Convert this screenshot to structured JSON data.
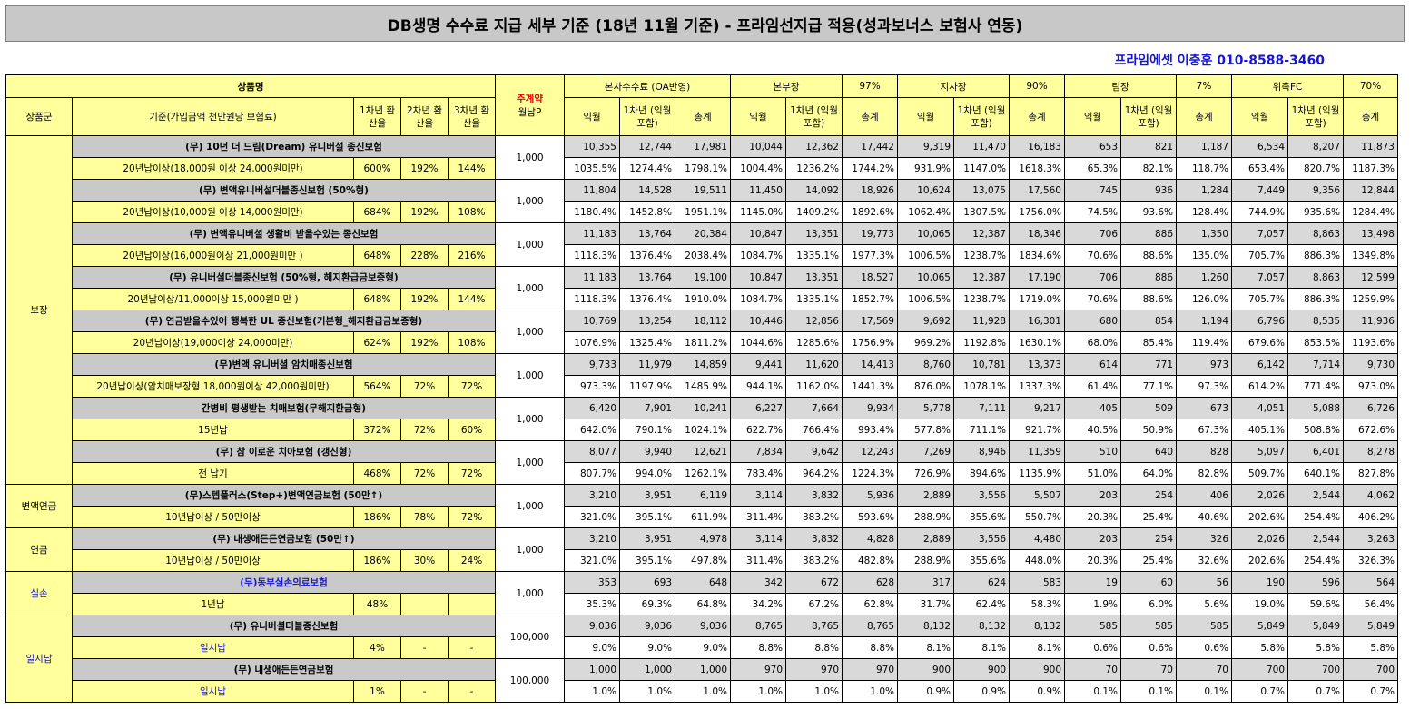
{
  "title": "DB생명 수수료 지급 세부 기준 (18년 11월 기준) - 프라임선지급 적용(성과보너스 보험사 연동)",
  "contact": "프라임에셋 이충훈 010-8588-3460",
  "headers": {
    "product_name": "상품명",
    "group": "상품군",
    "criteria": "기준(가입금액 천만원당 보험료)",
    "yr1": "1차년 환산율",
    "yr2": "2차년 환산율",
    "yr3": "3차년 환산율",
    "premium_top": "주계약",
    "premium_bottom": "월납P",
    "hq_fee": "본사수수료 (OA반영)",
    "dept_head": "본부장",
    "dept_pct": "97%",
    "branch_head": "지사장",
    "branch_pct": "90%",
    "team_lead": "팀장",
    "team_pct": "7%",
    "fc": "위촉FC",
    "fc_pct": "70%",
    "ikwol": "익월",
    "yr1_incl": "1차년 (익월포함)",
    "total": "총계"
  },
  "groups": [
    {
      "name": "보장"
    },
    {
      "name": "변액연금"
    },
    {
      "name": "연금"
    },
    {
      "name": "실손"
    },
    {
      "name": "일시납"
    }
  ],
  "products": [
    {
      "name": "(무) 10년 더 드림(Dream) 유니버설 종신보험",
      "criteria": "20년납이상(18,000원 이상 24,000원미만)",
      "r1": "600%",
      "r2": "192%",
      "r3": "144%",
      "premium": "1,000",
      "nums": [
        "10,355",
        "12,744",
        "17,981",
        "10,044",
        "12,362",
        "17,442",
        "9,319",
        "11,470",
        "16,183",
        "653",
        "821",
        "1,187",
        "6,534",
        "8,207",
        "11,873"
      ],
      "rates": [
        "1035.5%",
        "1274.4%",
        "1798.1%",
        "1004.4%",
        "1236.2%",
        "1744.2%",
        "931.9%",
        "1147.0%",
        "1618.3%",
        "65.3%",
        "82.1%",
        "118.7%",
        "653.4%",
        "820.7%",
        "1187.3%"
      ]
    },
    {
      "name": "(무) 변액유니버설더블종신보험 (50%형)",
      "criteria": "20년납이상(10,000원 이상 14,000원미만)",
      "r1": "684%",
      "r2": "192%",
      "r3": "108%",
      "premium": "1,000",
      "nums": [
        "11,804",
        "14,528",
        "19,511",
        "11,450",
        "14,092",
        "18,926",
        "10,624",
        "13,075",
        "17,560",
        "745",
        "936",
        "1,284",
        "7,449",
        "9,356",
        "12,844"
      ],
      "rates": [
        "1180.4%",
        "1452.8%",
        "1951.1%",
        "1145.0%",
        "1409.2%",
        "1892.6%",
        "1062.4%",
        "1307.5%",
        "1756.0%",
        "74.5%",
        "93.6%",
        "128.4%",
        "744.9%",
        "935.6%",
        "1284.4%"
      ]
    },
    {
      "name": "(무) 변액유니버셜 생활비 받을수있는 종신보험",
      "criteria": "20년납이상(16,000원이상 21,000원미만 )",
      "r1": "648%",
      "r2": "228%",
      "r3": "216%",
      "premium": "1,000",
      "nums": [
        "11,183",
        "13,764",
        "20,384",
        "10,847",
        "13,351",
        "19,773",
        "10,065",
        "12,387",
        "18,346",
        "706",
        "886",
        "1,350",
        "7,057",
        "8,863",
        "13,498"
      ],
      "rates": [
        "1118.3%",
        "1376.4%",
        "2038.4%",
        "1084.7%",
        "1335.1%",
        "1977.3%",
        "1006.5%",
        "1238.7%",
        "1834.6%",
        "70.6%",
        "88.6%",
        "135.0%",
        "705.7%",
        "886.3%",
        "1349.8%"
      ]
    },
    {
      "name": "(무) 유니버셜더블종신보험 (50%형, 해지환급금보증형)",
      "criteria": "20년납이상/11,000이상 15,000원미만 )",
      "r1": "648%",
      "r2": "192%",
      "r3": "144%",
      "premium": "1,000",
      "nums": [
        "11,183",
        "13,764",
        "19,100",
        "10,847",
        "13,351",
        "18,527",
        "10,065",
        "12,387",
        "17,190",
        "706",
        "886",
        "1,260",
        "7,057",
        "8,863",
        "12,599"
      ],
      "rates": [
        "1118.3%",
        "1376.4%",
        "1910.0%",
        "1084.7%",
        "1335.1%",
        "1852.7%",
        "1006.5%",
        "1238.7%",
        "1719.0%",
        "70.6%",
        "88.6%",
        "126.0%",
        "705.7%",
        "886.3%",
        "1259.9%"
      ]
    },
    {
      "name": "(무) 연금받을수있어 행복한 UL 종신보험(기본형_해지환급금보증형)",
      "criteria": "20년납이상(19,000이상 24,000미만)",
      "r1": "624%",
      "r2": "192%",
      "r3": "108%",
      "premium": "1,000",
      "nums": [
        "10,769",
        "13,254",
        "18,112",
        "10,446",
        "12,856",
        "17,569",
        "9,692",
        "11,928",
        "16,301",
        "680",
        "854",
        "1,194",
        "6,796",
        "8,535",
        "11,936"
      ],
      "rates": [
        "1076.9%",
        "1325.4%",
        "1811.2%",
        "1044.6%",
        "1285.6%",
        "1756.9%",
        "969.2%",
        "1192.8%",
        "1630.1%",
        "68.0%",
        "85.4%",
        "119.4%",
        "679.6%",
        "853.5%",
        "1193.6%"
      ]
    },
    {
      "name": "(무)변액 유니버셜 암치매종신보험",
      "criteria": "20년납이상(암치매보장형 18,000원이상 42,000원미만)",
      "r1": "564%",
      "r2": "72%",
      "r3": "72%",
      "premium": "1,000",
      "nums": [
        "9,733",
        "11,979",
        "14,859",
        "9,441",
        "11,620",
        "14,413",
        "8,760",
        "10,781",
        "13,373",
        "614",
        "771",
        "973",
        "6,142",
        "7,714",
        "9,730"
      ],
      "rates": [
        "973.3%",
        "1197.9%",
        "1485.9%",
        "944.1%",
        "1162.0%",
        "1441.3%",
        "876.0%",
        "1078.1%",
        "1337.3%",
        "61.4%",
        "77.1%",
        "97.3%",
        "614.2%",
        "771.4%",
        "973.0%"
      ]
    },
    {
      "name": "간병비 평생받는 치매보험(무해지환급형)",
      "criteria": "15년납",
      "r1": "372%",
      "r2": "72%",
      "r3": "60%",
      "premium": "1,000",
      "nums": [
        "6,420",
        "7,901",
        "10,241",
        "6,227",
        "7,664",
        "9,934",
        "5,778",
        "7,111",
        "9,217",
        "405",
        "509",
        "673",
        "4,051",
        "5,088",
        "6,726"
      ],
      "rates": [
        "642.0%",
        "790.1%",
        "1024.1%",
        "622.7%",
        "766.4%",
        "993.4%",
        "577.8%",
        "711.1%",
        "921.7%",
        "40.5%",
        "50.9%",
        "67.3%",
        "405.1%",
        "508.8%",
        "672.6%"
      ]
    },
    {
      "name": "(무) 참 이로운 치아보험 (갱신형)",
      "criteria": "전 납기",
      "r1": "468%",
      "r2": "72%",
      "r3": "72%",
      "premium": "1,000",
      "nums": [
        "8,077",
        "9,940",
        "12,621",
        "7,834",
        "9,642",
        "12,243",
        "7,269",
        "8,946",
        "11,359",
        "510",
        "640",
        "828",
        "5,097",
        "6,401",
        "8,278"
      ],
      "rates": [
        "807.7%",
        "994.0%",
        "1262.1%",
        "783.4%",
        "964.2%",
        "1224.3%",
        "726.9%",
        "894.6%",
        "1135.9%",
        "51.0%",
        "64.0%",
        "82.8%",
        "509.7%",
        "640.1%",
        "827.8%"
      ]
    },
    {
      "name": "(무)스텝플러스(Step+)변액연금보험 (50만↑)",
      "criteria": "10년납이상 / 50만이상",
      "r1": "186%",
      "r2": "78%",
      "r3": "72%",
      "premium": "1,000",
      "nums": [
        "3,210",
        "3,951",
        "6,119",
        "3,114",
        "3,832",
        "5,936",
        "2,889",
        "3,556",
        "5,507",
        "203",
        "254",
        "406",
        "2,026",
        "2,544",
        "4,062"
      ],
      "rates": [
        "321.0%",
        "395.1%",
        "611.9%",
        "311.4%",
        "383.2%",
        "593.6%",
        "288.9%",
        "355.6%",
        "550.7%",
        "20.3%",
        "25.4%",
        "40.6%",
        "202.6%",
        "254.4%",
        "406.2%"
      ]
    },
    {
      "name": "(무) 내생애든든연금보험 (50만↑)",
      "criteria": "10년납이상 / 50만이상",
      "r1": "186%",
      "r2": "30%",
      "r3": "24%",
      "premium": "1,000",
      "nums": [
        "3,210",
        "3,951",
        "4,978",
        "3,114",
        "3,832",
        "4,828",
        "2,889",
        "3,556",
        "4,480",
        "203",
        "254",
        "326",
        "2,026",
        "2,544",
        "3,263"
      ],
      "rates": [
        "321.0%",
        "395.1%",
        "497.8%",
        "311.4%",
        "383.2%",
        "482.8%",
        "288.9%",
        "355.6%",
        "448.0%",
        "20.3%",
        "25.4%",
        "32.6%",
        "202.6%",
        "254.4%",
        "326.3%"
      ]
    },
    {
      "name": "(무)동부실손의료보험",
      "criteria": "1년납",
      "r1": "48%",
      "r2": "",
      "r3": "",
      "premium": "1,000",
      "nums": [
        "353",
        "693",
        "648",
        "342",
        "672",
        "628",
        "317",
        "624",
        "583",
        "19",
        "60",
        "56",
        "190",
        "596",
        "564"
      ],
      "rates": [
        "35.3%",
        "69.3%",
        "64.8%",
        "34.2%",
        "67.2%",
        "62.8%",
        "31.7%",
        "62.4%",
        "58.3%",
        "1.9%",
        "6.0%",
        "5.6%",
        "19.0%",
        "59.6%",
        "56.4%"
      ]
    },
    {
      "name": "(무) 유니버셜더블종신보험",
      "criteria": "일시납",
      "r1": "4%",
      "r2": "-",
      "r3": "-",
      "premium": "100,000",
      "nums": [
        "9,036",
        "9,036",
        "9,036",
        "8,765",
        "8,765",
        "8,765",
        "8,132",
        "8,132",
        "8,132",
        "585",
        "585",
        "585",
        "5,849",
        "5,849",
        "5,849"
      ],
      "rates": [
        "9.0%",
        "9.0%",
        "9.0%",
        "8.8%",
        "8.8%",
        "8.8%",
        "8.1%",
        "8.1%",
        "8.1%",
        "0.6%",
        "0.6%",
        "0.6%",
        "5.8%",
        "5.8%",
        "5.8%"
      ]
    },
    {
      "name": "(무) 내생애든든연금보험",
      "criteria": "일시납",
      "r1": "1%",
      "r2": "-",
      "r3": "-",
      "premium": "100,000",
      "nums": [
        "1,000",
        "1,000",
        "1,000",
        "970",
        "970",
        "970",
        "900",
        "900",
        "900",
        "70",
        "70",
        "70",
        "700",
        "700",
        "700"
      ],
      "rates": [
        "1.0%",
        "1.0%",
        "1.0%",
        "1.0%",
        "1.0%",
        "1.0%",
        "0.9%",
        "0.9%",
        "0.9%",
        "0.1%",
        "0.1%",
        "0.1%",
        "0.7%",
        "0.7%",
        "0.7%"
      ]
    }
  ],
  "styles": {
    "header_bg": "#ffff9c",
    "name_bg": "#c9c9c9",
    "number_bg": "#d9d9d9",
    "accent_blue": "#1515d4",
    "accent_red": "#e00000"
  }
}
